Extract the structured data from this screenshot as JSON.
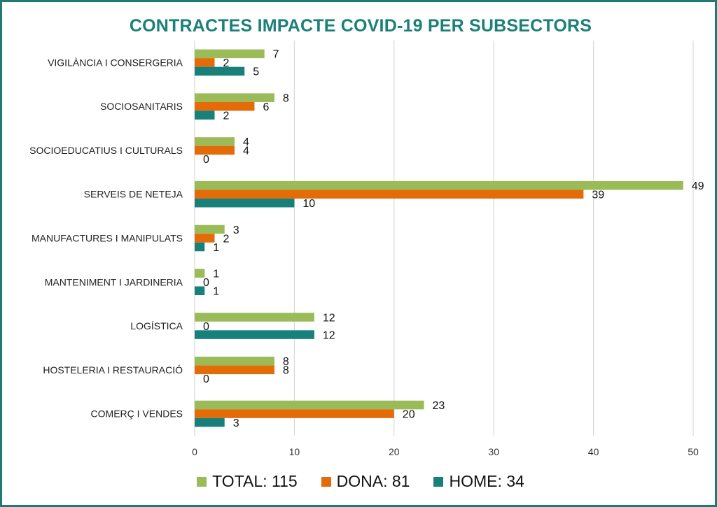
{
  "chart_data": {
    "type": "bar",
    "orientation": "horizontal",
    "title": "CONTRACTES IMPACTE COVID-19 PER SUBSECTORS",
    "categories": [
      "VIGILÀNCIA I CONSERGERIA",
      "SOCIOSANITARIS",
      "SOCIOEDUCATIUS I CULTURALS",
      "SERVEIS DE NETEJA",
      "MANUFACTURES I MANIPULATS",
      "MANTENIMENT I JARDINERIA",
      "LOGÍSTICA",
      "HOSTELERIA I RESTAURACIÓ",
      "COMERÇ I VENDES"
    ],
    "series": [
      {
        "name": "TOTAL: 115",
        "color": "#9bbb59",
        "values": [
          7,
          8,
          4,
          49,
          3,
          1,
          12,
          8,
          23
        ]
      },
      {
        "name": "DONA: 81",
        "color": "#e36c09",
        "values": [
          2,
          6,
          4,
          39,
          2,
          0,
          0,
          8,
          20
        ]
      },
      {
        "name": "HOME: 34",
        "color": "#17807a",
        "values": [
          5,
          2,
          0,
          10,
          1,
          1,
          12,
          0,
          3
        ]
      }
    ],
    "xticks": [
      "0",
      "10",
      "20",
      "30",
      "40",
      "50"
    ],
    "xlim": [
      0,
      50
    ],
    "grid": true,
    "legend_position": "bottom"
  }
}
